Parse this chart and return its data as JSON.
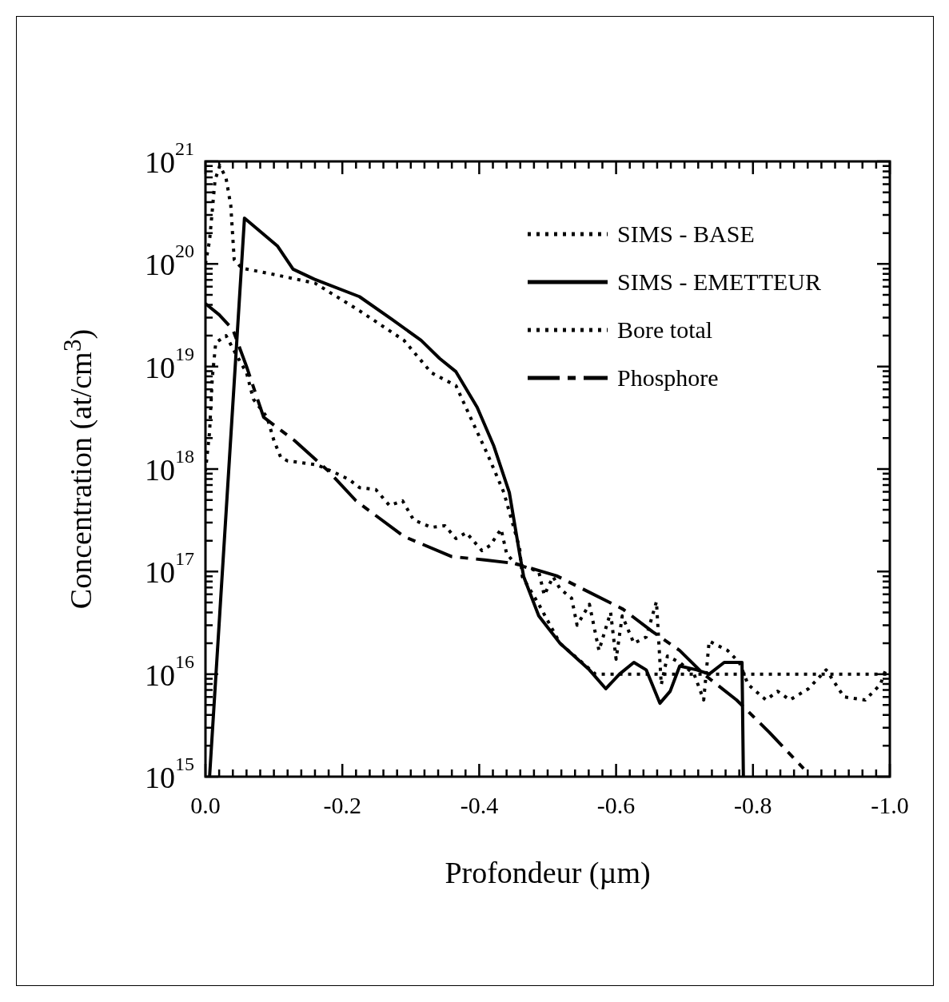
{
  "chart_data": {
    "type": "line",
    "xlabel": "Profondeur (µm)",
    "ylabel": "Concentration (at/cm$^{3}$)",
    "log": true,
    "grid": false,
    "legend": "top right",
    "marker": "none",
    "xlim": [
      0,
      -1.0
    ],
    "xticks": [
      {
        "value": 0,
        "label": "0.0"
      },
      {
        "value": -0.02,
        "label": null
      },
      {
        "value": -0.04,
        "label": null
      },
      {
        "value": -0.06,
        "label": null
      },
      {
        "value": -0.08,
        "label": null
      },
      {
        "value": -0.1,
        "label": null
      },
      {
        "value": -0.12,
        "label": null
      },
      {
        "value": -0.14,
        "label": null
      },
      {
        "value": -0.16,
        "label": null
      },
      {
        "value": -0.18,
        "label": null
      },
      {
        "value": -0.2,
        "label": "-0.2"
      },
      {
        "value": -0.22,
        "label": null
      },
      {
        "value": -0.24,
        "label": null
      },
      {
        "value": -0.26,
        "label": null
      },
      {
        "value": -0.28,
        "label": null
      },
      {
        "value": -0.3,
        "label": null
      },
      {
        "value": -0.32,
        "label": null
      },
      {
        "value": -0.34,
        "label": null
      },
      {
        "value": -0.36,
        "label": null
      },
      {
        "value": -0.38,
        "label": null
      },
      {
        "value": -0.4,
        "label": "-0.4"
      },
      {
        "value": -0.42,
        "label": null
      },
      {
        "value": -0.44,
        "label": null
      },
      {
        "value": -0.46,
        "label": null
      },
      {
        "value": -0.48,
        "label": null
      },
      {
        "value": -0.5,
        "label": null
      },
      {
        "value": -0.52,
        "label": null
      },
      {
        "value": -0.54,
        "label": null
      },
      {
        "value": -0.56,
        "label": null
      },
      {
        "value": -0.58,
        "label": null
      },
      {
        "value": -0.6,
        "label": "-0.6"
      },
      {
        "value": -0.62,
        "label": null
      },
      {
        "value": -0.64,
        "label": null
      },
      {
        "value": -0.66,
        "label": null
      },
      {
        "value": -0.68,
        "label": null
      },
      {
        "value": -0.7,
        "label": null
      },
      {
        "value": -0.72,
        "label": null
      },
      {
        "value": -0.74,
        "label": null
      },
      {
        "value": -0.76,
        "label": null
      },
      {
        "value": -0.78,
        "label": null
      },
      {
        "value": -0.8,
        "label": "-0.8"
      },
      {
        "value": -0.82,
        "label": null
      },
      {
        "value": -0.84,
        "label": null
      },
      {
        "value": -0.86,
        "label": null
      },
      {
        "value": -0.88,
        "label": null
      },
      {
        "value": -0.9,
        "label": null
      },
      {
        "value": -0.92,
        "label": null
      },
      {
        "value": -0.94,
        "label": null
      },
      {
        "value": -0.96,
        "label": null
      },
      {
        "value": -0.98,
        "label": null
      },
      {
        "value": -1.0,
        "label": "-1.0"
      }
    ],
    "ylim": [
      1000000000000000.0,
      1e+21
    ],
    "yticks": [
      {
        "value": 1000000000000000.0,
        "label": "10$^{15}$"
      },
      {
        "value": 2000000000000000.0,
        "label": null
      },
      {
        "value": 3000000000000000.0,
        "label": null
      },
      {
        "value": 4000000000000000.0,
        "label": null
      },
      {
        "value": 5000000000000000.0,
        "label": null
      },
      {
        "value": 6000000000000000.0,
        "label": null
      },
      {
        "value": 7000000000000000.0,
        "label": null
      },
      {
        "value": 8000000000000000.0,
        "label": null
      },
      {
        "value": 9000000000000000.0,
        "label": null
      },
      {
        "value": 1e+16,
        "label": "10$^{16}$"
      },
      {
        "value": 2e+16,
        "label": null
      },
      {
        "value": 3e+16,
        "label": null
      },
      {
        "value": 4e+16,
        "label": null
      },
      {
        "value": 5e+16,
        "label": null
      },
      {
        "value": 6e+16,
        "label": null
      },
      {
        "value": 7e+16,
        "label": null
      },
      {
        "value": 8e+16,
        "label": null
      },
      {
        "value": 9e+16,
        "label": null
      },
      {
        "value": 1e+17,
        "label": "10$^{17}$"
      },
      {
        "value": 2e+17,
        "label": null
      },
      {
        "value": 3e+17,
        "label": null
      },
      {
        "value": 4e+17,
        "label": null
      },
      {
        "value": 5e+17,
        "label": null
      },
      {
        "value": 6e+17,
        "label": null
      },
      {
        "value": 7e+17,
        "label": null
      },
      {
        "value": 8e+17,
        "label": null
      },
      {
        "value": 9e+17,
        "label": null
      },
      {
        "value": 1e+18,
        "label": "10$^{18}$"
      },
      {
        "value": 2e+18,
        "label": null
      },
      {
        "value": 3e+18,
        "label": null
      },
      {
        "value": 4e+18,
        "label": null
      },
      {
        "value": 5e+18,
        "label": null
      },
      {
        "value": 6e+18,
        "label": null
      },
      {
        "value": 7e+18,
        "label": null
      },
      {
        "value": 8e+18,
        "label": null
      },
      {
        "value": 9e+18,
        "label": null
      },
      {
        "value": 1e+19,
        "label": "10$^{19}$"
      },
      {
        "value": 2e+19,
        "label": null
      },
      {
        "value": 3e+19,
        "label": null
      },
      {
        "value": 4e+19,
        "label": null
      },
      {
        "value": 5e+19,
        "label": null
      },
      {
        "value": 6e+19,
        "label": null
      },
      {
        "value": 7e+19,
        "label": null
      },
      {
        "value": 8e+19,
        "label": null
      },
      {
        "value": 9e+19,
        "label": null
      },
      {
        "value": 1e+20,
        "label": "10$^{20}$"
      },
      {
        "value": 2e+20,
        "label": null
      },
      {
        "value": 3e+20,
        "label": null
      },
      {
        "value": 4e+20,
        "label": null
      },
      {
        "value": 5e+20,
        "label": null
      },
      {
        "value": 6e+20,
        "label": null
      },
      {
        "value": 7e+20,
        "label": null
      },
      {
        "value": 8e+20,
        "label": null
      },
      {
        "value": 9e+20,
        "label": null
      },
      {
        "value": 1e+21,
        "label": "10$^{21}$"
      }
    ],
    "series": [
      {
        "name": "SIMS - BASE",
        "color": "#000000",
        "line_style": "dotted",
        "x": [
          0,
          -0.006,
          -0.01,
          -0.015,
          -0.03,
          -0.045,
          -0.06,
          -0.07,
          -0.09,
          -0.1,
          -0.11,
          -0.12,
          -0.163,
          -0.194,
          -0.21,
          -0.225,
          -0.249,
          -0.269,
          -0.288,
          -0.304,
          -0.33,
          -0.35,
          -0.366,
          -0.381,
          -0.404,
          -0.416,
          -0.432,
          -0.44,
          -0.452,
          -0.487,
          -0.495,
          -0.508,
          -0.518,
          -0.535,
          -0.543,
          -0.561,
          -0.575,
          -0.592,
          -0.6,
          -0.609,
          -0.626,
          -0.644,
          -0.659,
          -0.666,
          -0.675,
          -0.693,
          -0.714,
          -0.728,
          -0.736,
          -0.763,
          -0.78,
          -0.793,
          -0.819,
          -0.836,
          -0.854,
          -0.881,
          -0.907,
          -0.933,
          -0.964,
          -0.986,
          -0.994
        ],
        "values": [
          9.5e+17,
          2.3e+18,
          7.8e+18,
          1.7e+19,
          2e+19,
          1.3e+19,
          8.7e+18,
          4.8e+18,
          3.2e+18,
          1.9e+18,
          1.3e+18,
          1.2e+18,
          1.1e+18,
          8.9e+17,
          7.9e+17,
          6.6e+17,
          6.3e+17,
          4.4e+17,
          4.9e+17,
          3.2e+17,
          2.7e+17,
          2.8e+17,
          2.1e+17,
          2.4e+17,
          1.6e+17,
          1.8e+17,
          2.6e+17,
          1.5e+17,
          1.2e+17,
          1e+17,
          5.9e+16,
          8.9e+16,
          6.8e+16,
          5.5e+16,
          3e+16,
          4.8e+16,
          1.7e+16,
          4e+16,
          1.4e+16,
          3.7e+16,
          2e+16,
          2.3e+16,
          5.1e+16,
          7900000000000000.0,
          1.5e+16,
          1.3e+16,
          1e+16,
          5600000000000000.0,
          2.1e+16,
          1.7e+16,
          1.3e+16,
          7900000000000000.0,
          5600000000000000.0,
          6800000000000000.0,
          5600000000000000.0,
          7200000000000000.0,
          1.1e+16,
          6000000000000000.0,
          5600000000000000.0,
          7900000000000000.0,
          1.1e+16
        ]
      },
      {
        "name": "SIMS - EMETTEUR",
        "color": "#000000",
        "line_style": "solid",
        "x": [
          -0.006,
          -0.057,
          -0.105,
          -0.128,
          -0.159,
          -0.225,
          -0.272,
          -0.315,
          -0.342,
          -0.366,
          -0.397,
          -0.421,
          -0.444,
          -0.459,
          -0.465,
          -0.487,
          -0.518,
          -0.561,
          -0.585,
          -0.605,
          -0.626,
          -0.644,
          -0.664,
          -0.679,
          -0.693,
          -0.718,
          -0.736,
          -0.758,
          -0.784,
          -0.786
        ],
        "values": [
          1000000000000000.0,
          2.8e+20,
          1.5e+20,
          8.9e+19,
          7.1e+19,
          4.8e+19,
          2.9e+19,
          1.8e+19,
          1.2e+19,
          8.9e+18,
          4e+18,
          1.7e+18,
          5.9e+17,
          1.5e+17,
          8.9e+16,
          3.7e+16,
          2e+16,
          1.1e+16,
          7200000000000000.0,
          1e+16,
          1.3e+16,
          1.1e+16,
          5200000000000000.0,
          6800000000000000.0,
          1.2e+16,
          1.1e+16,
          1e+16,
          1.3e+16,
          1.3e+16,
          1000000000000000.0
        ]
      },
      {
        "name": "Bore total",
        "color": "#000000",
        "line_style": "dotted",
        "x": [
          0,
          -0.006,
          -0.014,
          -0.021,
          -0.03,
          -0.037,
          -0.042,
          -0.053,
          -0.1,
          -0.16,
          -0.225,
          -0.29,
          -0.33,
          -0.366,
          -0.389,
          -0.412,
          -0.436,
          -0.459,
          -0.463,
          -0.487,
          -0.518,
          -0.57,
          -1.0
        ],
        "values": [
          1e+20,
          1.7e+20,
          6.6e+20,
          9.1e+20,
          6.9e+20,
          3.7e+20,
          1.1e+20,
          9.1e+19,
          7.9e+19,
          6.5e+19,
          3.5e+19,
          1.8e+19,
          8.7e+18,
          6.5e+18,
          3e+18,
          1.4e+18,
          5.9e+17,
          1.7e+17,
          8.9e+16,
          4.8e+16,
          2e+16,
          1e+16,
          1e+16
        ]
      },
      {
        "name": "Phosphore",
        "color": "#000000",
        "line_style": "dashed",
        "x": [
          0,
          -0.02,
          -0.04,
          -0.06,
          -0.085,
          -0.13,
          -0.18,
          -0.22,
          -0.29,
          -0.36,
          -0.408,
          -0.452,
          -0.513,
          -0.61,
          -0.653,
          -0.693,
          -0.728,
          -0.776,
          -0.824,
          -0.874
        ],
        "values": [
          4.1e+19,
          3.2e+19,
          2.3e+19,
          1e+19,
          3.2e+18,
          1.9e+18,
          9.5e+17,
          4.9e+17,
          2.2e+17,
          1.4e+17,
          1.3e+17,
          1.2e+17,
          9.1e+16,
          4.3e+16,
          2.6e+16,
          1.7e+16,
          1e+16,
          5600000000000000.0,
          2700000000000000.0,
          1200000000000000.0
        ]
      }
    ]
  }
}
